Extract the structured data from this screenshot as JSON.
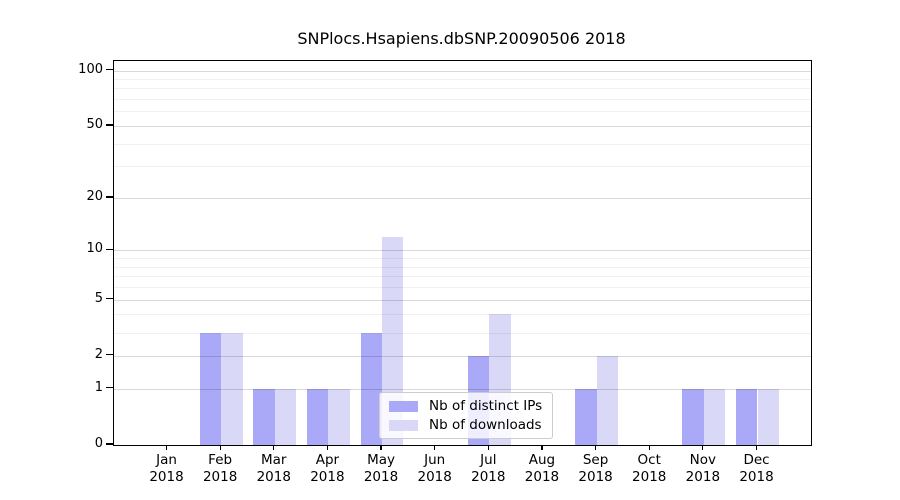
{
  "title": "SNPlocs.Hsapiens.dbSNP.20090506 2018",
  "chart_data": {
    "type": "bar",
    "title": "SNPlocs.Hsapiens.dbSNP.20090506 2018",
    "categories": [
      "Jan",
      "Feb",
      "Mar",
      "Apr",
      "May",
      "Jun",
      "Jul",
      "Aug",
      "Sep",
      "Oct",
      "Nov",
      "Dec"
    ],
    "year": "2018",
    "series": [
      {
        "name": "Nb of distinct IPs",
        "color": "#a9a9f7",
        "values": [
          0,
          3,
          1,
          1,
          3,
          0,
          2,
          0,
          1,
          0,
          1,
          1
        ]
      },
      {
        "name": "Nb of downloads",
        "color": "#d9d9f7",
        "values": [
          0,
          3,
          1,
          1,
          12,
          0,
          4,
          0,
          2,
          0,
          1,
          1
        ]
      }
    ],
    "xlabel": "",
    "ylabel": "",
    "y_ticks": [
      0,
      1,
      2,
      5,
      10,
      20,
      50,
      100
    ],
    "y_minor_gridlines": [
      3,
      4,
      6,
      7,
      8,
      9,
      30,
      40,
      60,
      70,
      80,
      90
    ],
    "yscale": "log10(value+1)",
    "ylim": [
      0,
      112.6
    ],
    "grid": "horizontal gridlines drawn over bars",
    "legend_position": "inside lower-center",
    "colors": {
      "bar_distinct_ips": "#a9a9f7",
      "bar_downloads": "#d9d9f7",
      "axis": "#000000",
      "grid_major": "rgba(0,0,0,0.15)",
      "grid_minor": "rgba(0,0,0,0.06)",
      "legend_border": "#cccccc"
    }
  }
}
